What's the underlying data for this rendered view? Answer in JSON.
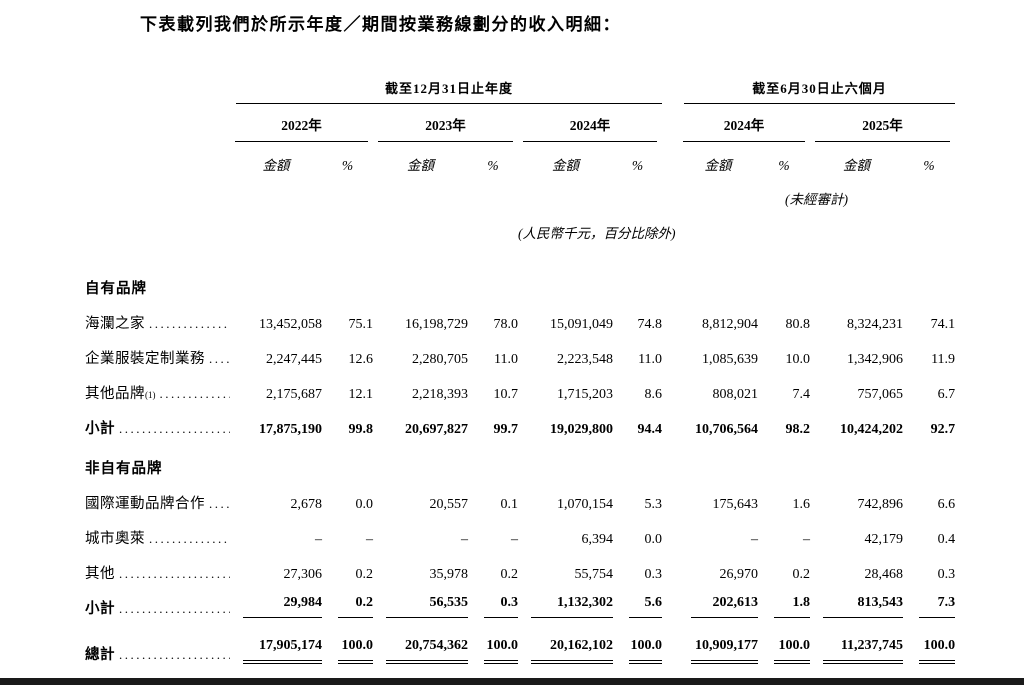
{
  "title": "下表載列我們於所示年度／期間按業務線劃分的收入明細：",
  "colors": {
    "text": "#000000",
    "rule": "#000000",
    "footer_strip": "#1a1a1a"
  },
  "table": {
    "groups": [
      {
        "label": "截至12月31日止年度",
        "years": [
          "2022年",
          "2023年",
          "2024年"
        ]
      },
      {
        "label": "截至6月30日止六個月",
        "years": [
          "2024年",
          "2025年"
        ]
      }
    ],
    "amount_header": "金額",
    "percent_header": "%",
    "unaudited_note": "(未經審計)",
    "currency_note": "(人民幣千元，百分比除外)",
    "rows": [
      {
        "type": "section",
        "label": "自有品牌"
      },
      {
        "type": "data",
        "label": "海瀾之家",
        "values": [
          "13,452,058",
          "75.1",
          "16,198,729",
          "78.0",
          "15,091,049",
          "74.8",
          "8,812,904",
          "80.8",
          "8,324,231",
          "74.1"
        ]
      },
      {
        "type": "data",
        "label": "企業服裝定制業務",
        "values": [
          "2,247,445",
          "12.6",
          "2,280,705",
          "11.0",
          "2,223,548",
          "11.0",
          "1,085,639",
          "10.0",
          "1,342,906",
          "11.9"
        ]
      },
      {
        "type": "data",
        "label": "其他品牌",
        "note": "(1)",
        "values": [
          "2,175,687",
          "12.1",
          "2,218,393",
          "10.7",
          "1,715,203",
          "8.6",
          "808,021",
          "7.4",
          "757,065",
          "6.7"
        ]
      },
      {
        "type": "subtotal",
        "label": "小計",
        "rule": false,
        "values": [
          "17,875,190",
          "99.8",
          "20,697,827",
          "99.7",
          "19,029,800",
          "94.4",
          "10,706,564",
          "98.2",
          "10,424,202",
          "92.7"
        ]
      },
      {
        "type": "section",
        "label": "非自有品牌"
      },
      {
        "type": "data",
        "label": "國際運動品牌合作",
        "values": [
          "2,678",
          "0.0",
          "20,557",
          "0.1",
          "1,070,154",
          "5.3",
          "175,643",
          "1.6",
          "742,896",
          "6.6"
        ]
      },
      {
        "type": "data",
        "label": "城市奧萊",
        "values": [
          "–",
          "–",
          "–",
          "–",
          "6,394",
          "0.0",
          "–",
          "–",
          "42,179",
          "0.4"
        ]
      },
      {
        "type": "data",
        "label": "其他",
        "values": [
          "27,306",
          "0.2",
          "35,978",
          "0.2",
          "55,754",
          "0.3",
          "26,970",
          "0.2",
          "28,468",
          "0.3"
        ]
      },
      {
        "type": "subtotal",
        "label": "小計",
        "rule": true,
        "values": [
          "29,984",
          "0.2",
          "56,535",
          "0.3",
          "1,132,302",
          "5.6",
          "202,613",
          "1.8",
          "813,543",
          "7.3"
        ]
      },
      {
        "type": "total",
        "label": "總計",
        "values": [
          "17,905,174",
          "100.0",
          "20,754,362",
          "100.0",
          "20,162,102",
          "100.0",
          "10,909,177",
          "100.0",
          "11,237,745",
          "100.0"
        ]
      }
    ]
  }
}
